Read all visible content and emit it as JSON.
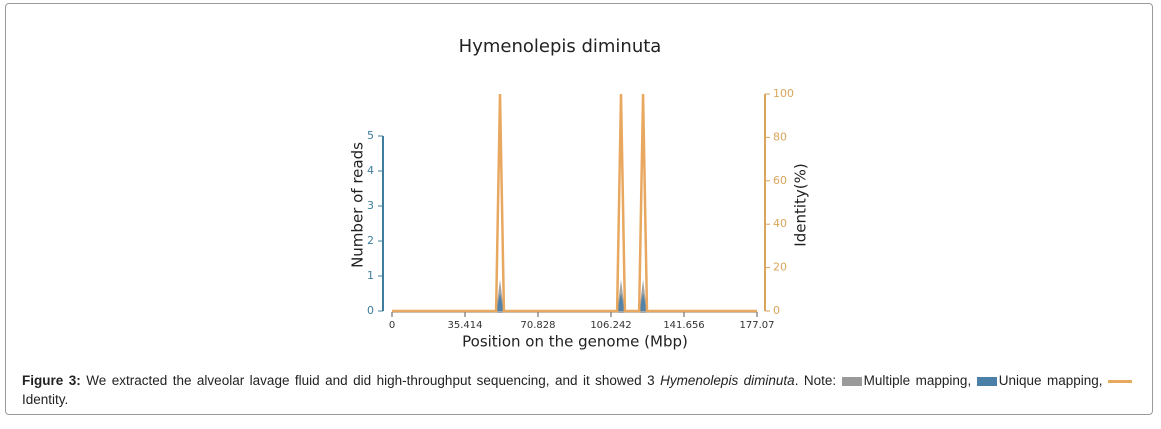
{
  "chart_data": {
    "type": "area",
    "title": "Hymenolepis diminuta",
    "x_label": "Position on the genome (Mbp)",
    "y_label": "Number of reads",
    "y2_label": "Identity(%)",
    "x": [
      0,
      50.5,
      52.4,
      54.3,
      109.2,
      111.1,
      113.0,
      119.9,
      121.8,
      123.7,
      177.07
    ],
    "series": [
      {
        "name": "Multiple mapping",
        "color": "#9a9a9a",
        "values": [
          0,
          0,
          0.9,
          0,
          0,
          0.9,
          0,
          0,
          0.9,
          0,
          0
        ]
      },
      {
        "name": "Unique mapping",
        "color": "#4a7fa8",
        "values": [
          0,
          0,
          0.5,
          0,
          0,
          0.5,
          0,
          0,
          0.5,
          0,
          0
        ]
      },
      {
        "name": "Identity",
        "color": "#e8a860",
        "axis": "y2",
        "values": [
          0,
          0,
          100,
          0,
          0,
          100,
          0,
          0,
          100,
          0,
          0
        ]
      }
    ],
    "xlim": [
      0,
      177.07
    ],
    "xticks": [
      0,
      35.414,
      70.828,
      106.242,
      141.656,
      177.07
    ],
    "ylim": [
      0,
      5
    ],
    "yticks": [
      0,
      1,
      2,
      3,
      4,
      5
    ],
    "y2lim": [
      0,
      100
    ],
    "y2ticks": [
      0,
      20,
      40,
      60,
      80,
      100
    ]
  },
  "caption": {
    "label": "Figure 3:",
    "text": "We extracted the alveolar lavage fluid and did high-throughput sequencing, and it showed 3",
    "species": "Hymenolepis diminuta",
    "note": ". Note:",
    "separators": [
      ",",
      ",",
      "."
    ]
  }
}
